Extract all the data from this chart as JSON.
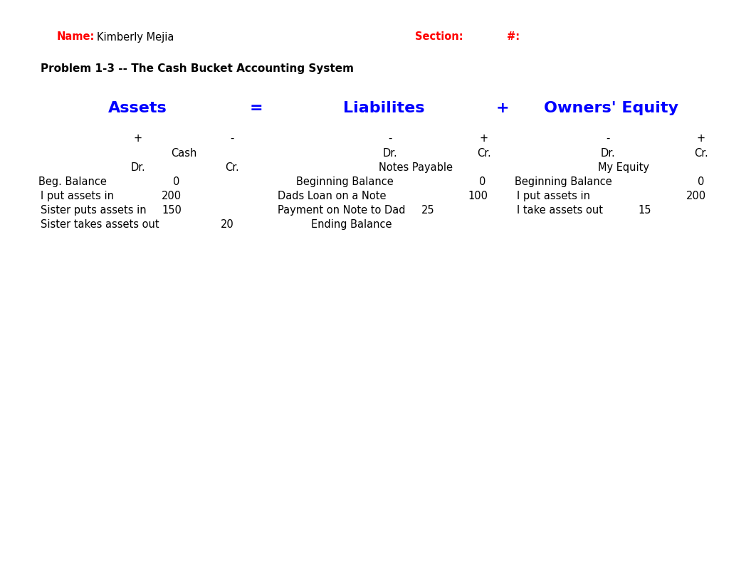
{
  "background_color": "#ffffff",
  "name_label": "Name:",
  "name_value": "Kimberly Mejia",
  "section_label": "Section:",
  "number_label": "#:",
  "title": "Problem 1-3 -- The Cash Bucket Accounting System",
  "header_assets": "Assets",
  "header_eq": "=",
  "header_liabilities": "Liabilites",
  "header_plus": "+",
  "header_equity": "Owners' Equity",
  "blue_color": "#0000FF",
  "red_color": "#FF0000",
  "black_color": "#000000"
}
